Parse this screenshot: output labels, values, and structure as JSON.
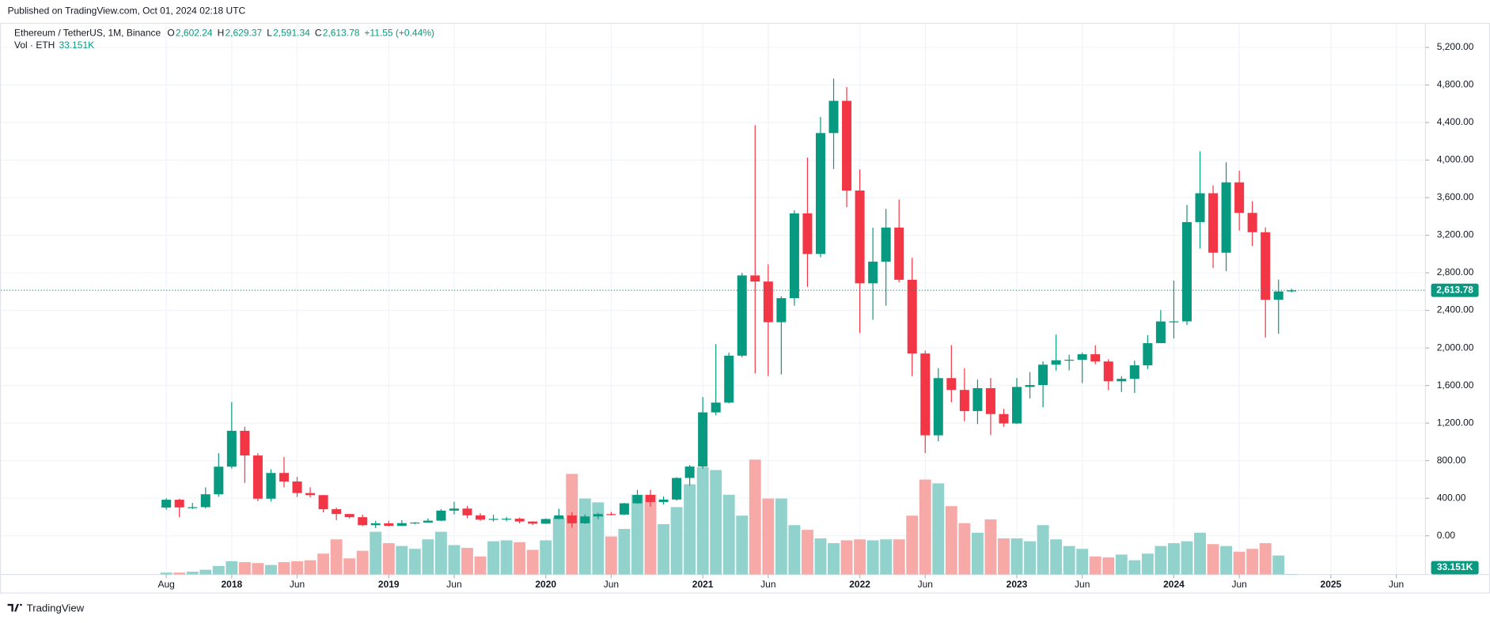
{
  "header": {
    "published": "Published on TradingView.com, Oct 01, 2024 02:18 UTC"
  },
  "footer": {
    "brand": "TradingView"
  },
  "chart_data": {
    "type": "candlestick",
    "title": "Ethereum / TetherUS, 1M, Binance",
    "legend": {
      "items": [
        {
          "key": "O",
          "text": "2,602.24"
        },
        {
          "key": "H",
          "text": "2,629.37"
        },
        {
          "key": "L",
          "text": "2,591.34"
        },
        {
          "key": "C",
          "text": "2,613.78"
        }
      ],
      "change": "+11.55 (+0.44%)"
    },
    "volume_legend": {
      "name": "Vol · ETH"
    },
    "up_color": "#089981",
    "down_color": "#f23645",
    "volume_up_color": "#92d2cc",
    "volume_down_color": "#f7a9a7",
    "categories": [
      "2017-08",
      "2017-09",
      "2017-10",
      "2017-11",
      "2017-12",
      "2018-01",
      "2018-02",
      "2018-03",
      "2018-04",
      "2018-05",
      "2018-06",
      "2018-07",
      "2018-08",
      "2018-09",
      "2018-10",
      "2018-11",
      "2018-12",
      "2019-01",
      "2019-02",
      "2019-03",
      "2019-04",
      "2019-05",
      "2019-06",
      "2019-07",
      "2019-08",
      "2019-09",
      "2019-10",
      "2019-11",
      "2019-12",
      "2020-01",
      "2020-02",
      "2020-03",
      "2020-04",
      "2020-05",
      "2020-06",
      "2020-07",
      "2020-08",
      "2020-09",
      "2020-10",
      "2020-11",
      "2020-12",
      "2021-01",
      "2021-02",
      "2021-03",
      "2021-04",
      "2021-05",
      "2021-06",
      "2021-07",
      "2021-08",
      "2021-09",
      "2021-10",
      "2021-11",
      "2021-12",
      "2022-01",
      "2022-02",
      "2022-03",
      "2022-04",
      "2022-05",
      "2022-06",
      "2022-07",
      "2022-08",
      "2022-09",
      "2022-10",
      "2022-11",
      "2022-12",
      "2023-01",
      "2023-02",
      "2023-03",
      "2023-04",
      "2023-05",
      "2023-06",
      "2023-07",
      "2023-08",
      "2023-09",
      "2023-10",
      "2023-11",
      "2023-12",
      "2024-01",
      "2024-02",
      "2024-03",
      "2024-04",
      "2024-05",
      "2024-06",
      "2024-07",
      "2024-08",
      "2024-09",
      "2024-10"
    ],
    "open": [
      301,
      384,
      302,
      305,
      442,
      736,
      1118,
      855,
      395,
      669,
      578,
      455,
      433,
      283,
      232,
      198,
      113,
      133,
      106,
      135,
      141,
      161,
      268,
      290,
      218,
      172,
      180,
      182,
      152,
      129,
      179,
      217,
      133,
      206,
      231,
      226,
      346,
      435,
      360,
      386,
      616,
      737,
      1314,
      1418,
      1918,
      2772,
      2707,
      2274,
      2530,
      3433,
      3001,
      4288,
      4631,
      3676,
      2688,
      2919,
      3282,
      2726,
      1941,
      1070,
      1679,
      1553,
      1328,
      1572,
      1296,
      1196,
      1585,
      1605,
      1822,
      1869,
      1874,
      1933,
      1856,
      1645,
      1671,
      1815,
      2051,
      2282,
      2283,
      3340,
      3647,
      3014,
      3763,
      3438,
      3232,
      2513,
      2602.24
    ],
    "high": [
      400,
      394,
      350,
      515,
      880,
      1424,
      1161,
      880,
      708,
      838,
      627,
      516,
      434,
      300,
      232,
      225,
      160,
      160,
      166,
      145,
      185,
      285,
      362,
      317,
      240,
      224,
      200,
      194,
      155,
      185,
      288,
      253,
      228,
      245,
      254,
      350,
      490,
      488,
      420,
      623,
      754,
      1477,
      2041,
      1950,
      2800,
      4372,
      2891,
      2550,
      3466,
      4027,
      4460,
      4868,
      4778,
      3900,
      3281,
      3480,
      3580,
      2961,
      1970,
      1785,
      2030,
      1785,
      1663,
      1680,
      1352,
      1680,
      1743,
      1857,
      2142,
      1928,
      1950,
      2029,
      1880,
      1700,
      1865,
      2135,
      2403,
      2717,
      3523,
      4094,
      3730,
      3977,
      3888,
      3563,
      3283,
      2728,
      2629.37
    ],
    "low": [
      278,
      197,
      285,
      292,
      415,
      716,
      564,
      368,
      365,
      515,
      413,
      410,
      250,
      167,
      185,
      102,
      82,
      100,
      102,
      125,
      140,
      156,
      228,
      188,
      160,
      152,
      155,
      132,
      116,
      126,
      177,
      86,
      127,
      176,
      216,
      220,
      340,
      309,
      333,
      374,
      535,
      715,
      1283,
      1410,
      1900,
      1728,
      1700,
      1718,
      2450,
      2651,
      2966,
      3905,
      3500,
      2159,
      2300,
      2450,
      2700,
      1700,
      881,
      1006,
      1422,
      1220,
      1190,
      1073,
      1160,
      1190,
      1461,
      1368,
      1760,
      1761,
      1626,
      1826,
      1550,
      1531,
      1521,
      1776,
      2050,
      2100,
      2245,
      3058,
      2852,
      2817,
      3250,
      3087,
      2111,
      2150,
      2591.34
    ],
    "close": [
      384,
      302,
      305,
      442,
      736,
      1118,
      855,
      395,
      669,
      578,
      455,
      433,
      283,
      232,
      198,
      113,
      133,
      106,
      135,
      141,
      161,
      268,
      290,
      218,
      172,
      180,
      182,
      152,
      129,
      179,
      217,
      133,
      206,
      231,
      226,
      346,
      435,
      360,
      386,
      616,
      737,
      1314,
      1418,
      1918,
      2772,
      2707,
      2274,
      2530,
      3433,
      3001,
      4288,
      4631,
      3676,
      2688,
      2919,
      3282,
      2726,
      1941,
      1070,
      1679,
      1553,
      1328,
      1572,
      1296,
      1196,
      1585,
      1605,
      1822,
      1869,
      1874,
      1933,
      1856,
      1645,
      1671,
      1815,
      2051,
      2282,
      2283,
      3340,
      3647,
      3014,
      3763,
      3438,
      3232,
      2513,
      2602,
      2613.78
    ],
    "volume": [
      500000,
      500000,
      750000,
      1250000,
      2250000,
      3500000,
      3250000,
      3000000,
      2500000,
      3250000,
      3500000,
      3750000,
      5500000,
      9250000,
      4250000,
      6250000,
      11250000,
      8250000,
      7500000,
      6750000,
      9250000,
      11250000,
      7750000,
      7000000,
      4750000,
      8750000,
      9000000,
      8500000,
      6500000,
      9000000,
      15000000,
      26500000,
      20000000,
      19000000,
      10000000,
      12000000,
      21000000,
      21000000,
      13250000,
      17750000,
      23750000,
      28250000,
      27500000,
      21000000,
      15500000,
      30250000,
      20000000,
      20000000,
      13000000,
      11750000,
      9500000,
      8250000,
      9000000,
      9250000,
      9000000,
      9250000,
      9250000,
      15500000,
      25000000,
      24000000,
      18000000,
      13500000,
      11000000,
      14500000,
      9500000,
      9500000,
      8750000,
      13000000,
      9250000,
      7500000,
      6750000,
      4750000,
      4500000,
      5250000,
      3750000,
      5500000,
      7500000,
      8250000,
      8750000,
      11000000,
      8000000,
      7500000,
      6000000,
      6750000,
      8250000,
      5000000,
      33151
    ],
    "last_price": {
      "value": 2613.78,
      "label": "2,613.78"
    },
    "last_volume": {
      "value": 33151,
      "label": "33.151K"
    },
    "ylim": [
      -412,
      5451
    ],
    "vlim": [
      0,
      36000000
    ],
    "yticks": [
      {
        "value": 0,
        "label": "0.00"
      },
      {
        "value": 400,
        "label": "400.00"
      },
      {
        "value": 800,
        "label": "800.00"
      },
      {
        "value": 1200,
        "label": "1,200.00"
      },
      {
        "value": 1600,
        "label": "1,600.00"
      },
      {
        "value": 2000,
        "label": "2,000.00"
      },
      {
        "value": 2400,
        "label": "2,400.00"
      },
      {
        "value": 2800,
        "label": "2,800.00"
      },
      {
        "value": 3200,
        "label": "3,200.00"
      },
      {
        "value": 3600,
        "label": "3,600.00"
      },
      {
        "value": 4000,
        "label": "4,000.00"
      },
      {
        "value": 4400,
        "label": "4,400.00"
      },
      {
        "value": 4800,
        "label": "4,800.00"
      },
      {
        "value": 5200,
        "label": "5,200.00"
      }
    ],
    "xticks": [
      {
        "value": "2017-08",
        "label": "Aug"
      },
      {
        "value": "2018-01",
        "label": "2018"
      },
      {
        "value": "2018-06",
        "label": "Jun"
      },
      {
        "value": "2019-01",
        "label": "2019"
      },
      {
        "value": "2019-06",
        "label": "Jun"
      },
      {
        "value": "2020-01",
        "label": "2020"
      },
      {
        "value": "2020-06",
        "label": "Jun"
      },
      {
        "value": "2021-01",
        "label": "2021"
      },
      {
        "value": "2021-06",
        "label": "Jun"
      },
      {
        "value": "2022-01",
        "label": "2022"
      },
      {
        "value": "2022-06",
        "label": "Jun"
      },
      {
        "value": "2023-01",
        "label": "2023"
      },
      {
        "value": "2023-06",
        "label": "Jun"
      },
      {
        "value": "2024-01",
        "label": "2024"
      },
      {
        "value": "2024-06",
        "label": "Jun"
      },
      {
        "value": "2025-01",
        "label": "2025"
      },
      {
        "value": "2025-06",
        "label": "Jun"
      }
    ],
    "grid": true
  }
}
